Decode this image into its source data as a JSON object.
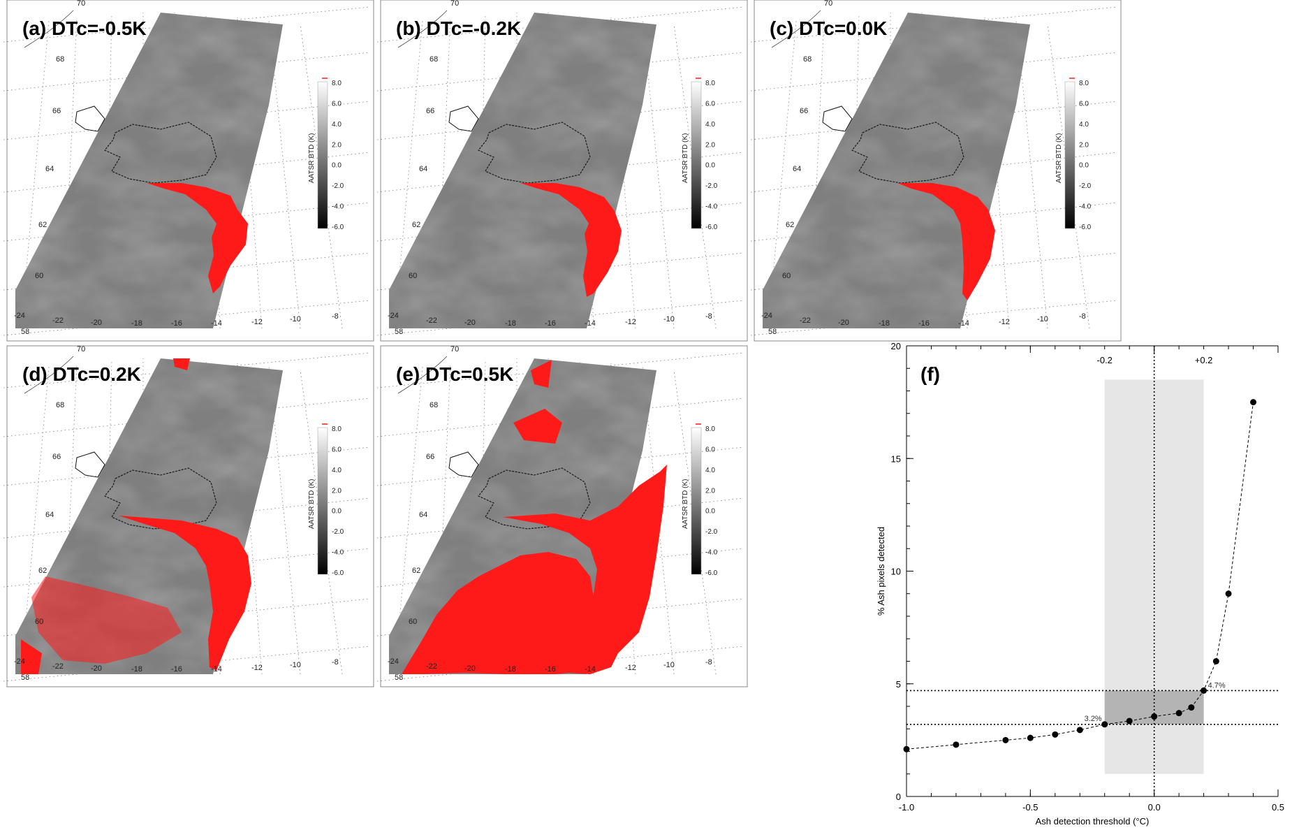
{
  "panels": [
    {
      "title": "(a)  DTc=-0.5K",
      "level": "a"
    },
    {
      "title": "(b)  DTc=-0.2K",
      "level": "b"
    },
    {
      "title": "(c)  DTc=0.0K",
      "level": "c"
    },
    {
      "title": "(d)  DTc=0.2K",
      "level": "d"
    },
    {
      "title": "(e)  DTc=0.5K",
      "level": "e"
    }
  ],
  "map_labels": {
    "lat": [
      "70",
      "68",
      "66",
      "64",
      "62",
      "60",
      "58"
    ],
    "lon": [
      "-24",
      "-22",
      "-20",
      "-18",
      "-16",
      "-14",
      "-12",
      "-10",
      "-8"
    ]
  },
  "colorbar": {
    "label": "AATSR BTD (K)",
    "ticks": [
      "8.0",
      "6.0",
      "4.0",
      "2.0",
      "0.0",
      "-2.0",
      "-4.0",
      "-6.0"
    ]
  },
  "colors": {
    "ash": "#ff1a1a",
    "swath": "#7f7f7f",
    "shade_light": "#e6e6e6",
    "shade_dark": "#b4b4b4"
  },
  "chart_data": {
    "type": "line",
    "title": "(f)",
    "xlabel": "Ash detection threshold (°C)",
    "ylabel": "% Ash pixels detected",
    "xlim": [
      -1.0,
      0.5
    ],
    "ylim": [
      0,
      20
    ],
    "xticks": [
      "-1.0",
      "-0.5",
      "0.0",
      "0.5"
    ],
    "yticks": [
      "0",
      "5",
      "10",
      "15",
      "20"
    ],
    "x": [
      -1.0,
      -0.8,
      -0.6,
      -0.5,
      -0.4,
      -0.3,
      -0.2,
      -0.1,
      0.0,
      0.1,
      0.15,
      0.2,
      0.25,
      0.3,
      0.4
    ],
    "y": [
      2.1,
      2.3,
      2.5,
      2.6,
      2.75,
      2.95,
      3.2,
      3.35,
      3.55,
      3.7,
      3.95,
      4.7,
      6.0,
      9.0,
      17.5
    ],
    "band_x": [
      -0.2,
      0.2
    ],
    "band_labels": [
      "-0.2",
      "+0.2"
    ],
    "hlines": [
      3.2,
      4.7
    ],
    "annotations": [
      "3.2%",
      "4.7%"
    ]
  }
}
